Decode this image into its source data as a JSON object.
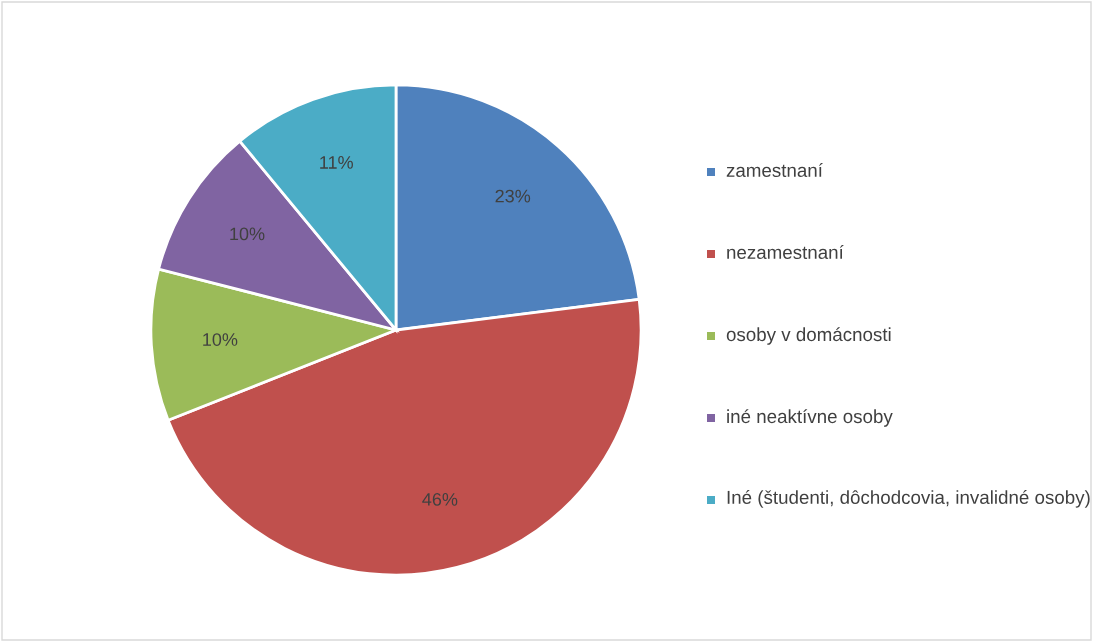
{
  "chart_data": {
    "type": "pie",
    "categories": [
      "zamestnaní",
      "nezamestnaní",
      "osoby v domácnosti",
      "iné neaktívne osoby",
      "Iné (študenti, dôchodcovia, invalidné osoby)"
    ],
    "values": [
      23,
      46,
      10,
      10,
      11
    ],
    "colors": [
      "#4f81bd",
      "#c0504d",
      "#9bbb59",
      "#8064a2",
      "#4bacc6"
    ],
    "value_labels": [
      "23%",
      "46%",
      "10%",
      "10%",
      "11%"
    ],
    "legend": "right"
  }
}
